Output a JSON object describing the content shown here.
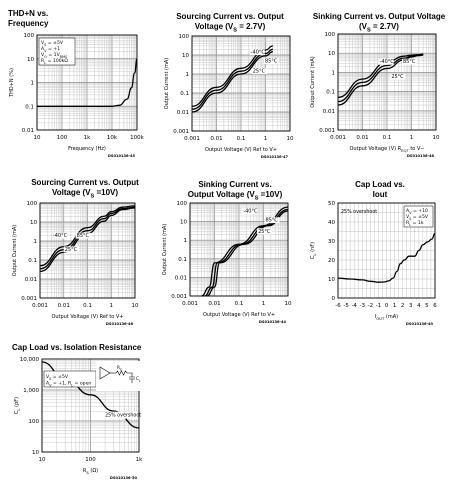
{
  "chart_data": [
    {
      "id": "thd",
      "type": "line",
      "title_lines": [
        "THD+N vs.",
        "Frequency"
      ],
      "xlabel": "Frequency (Hz)",
      "ylabel": "THD+N (%)",
      "xscale": "log",
      "yscale": "log",
      "xlim": [
        10,
        100000
      ],
      "ylim": [
        0.01,
        100
      ],
      "xticks": [
        10,
        100,
        1000,
        10000,
        100000
      ],
      "xticklabels": [
        "10",
        "100",
        "1k",
        "10k",
        "100k"
      ],
      "yticks": [
        0.01,
        0.1,
        1,
        10,
        100
      ],
      "yticklabels": [
        "0.01",
        "0.1",
        "1",
        "10",
        "100"
      ],
      "inset_lines": [
        "V_S = ±5V",
        "A_V = +1",
        "V_O = 1V_RMS",
        "R_L = 100kΩ"
      ],
      "code": "DS010136-45",
      "series": [
        {
          "x": [
            10,
            100,
            1000,
            10000,
            20000,
            40000,
            60000,
            80000,
            100000
          ],
          "y": [
            0.1,
            0.1,
            0.1,
            0.1,
            0.11,
            0.2,
            0.6,
            2.5,
            10
          ]
        }
      ]
    },
    {
      "id": "src27",
      "type": "line",
      "title_lines": [
        "Sourcing Current vs. Output",
        "Voltage (V_S = 2.7V)"
      ],
      "xlabel": "Output Voltage (V) Ref to V+",
      "ylabel": "Output Current (mA)",
      "xscale": "log",
      "yscale": "log",
      "xlim": [
        0.001,
        10
      ],
      "ylim": [
        0.001,
        100
      ],
      "xticks": [
        0.001,
        0.01,
        0.1,
        1,
        10
      ],
      "xticklabels": [
        "0.001",
        "0.01",
        "0.1",
        "1",
        "10"
      ],
      "yticks": [
        0.001,
        0.01,
        0.1,
        1,
        10,
        100
      ],
      "yticklabels": [
        "0.001",
        "0.01",
        "0.1",
        "1",
        "10",
        "100"
      ],
      "code": "DS010136-47",
      "series": [
        {
          "name": "-40°C",
          "x": [
            0.001,
            0.01,
            0.1,
            1,
            2
          ],
          "y": [
            0.02,
            0.2,
            2,
            18,
            30
          ]
        },
        {
          "name": "85°C",
          "x": [
            0.001,
            0.01,
            0.1,
            1,
            2
          ],
          "y": [
            0.014,
            0.14,
            1.4,
            12,
            20
          ]
        },
        {
          "name": "25°C",
          "x": [
            0.001,
            0.01,
            0.1,
            1,
            2
          ],
          "y": [
            0.01,
            0.1,
            1,
            9,
            15
          ]
        }
      ],
      "labels": [
        {
          "text": "-40°C",
          "x": 0.25,
          "y": 12
        },
        {
          "text": "85°C",
          "x": 0.95,
          "y": 4
        },
        {
          "text": "25°C",
          "x": 0.3,
          "y": 1.2
        }
      ]
    },
    {
      "id": "snk27",
      "type": "line",
      "title_lines": [
        "Sinking Current vs. Output Voltage",
        "(V_S = 2.7V)"
      ],
      "xlabel": "Output Voltage (V) R_EQT to V−",
      "ylabel": "Output Current (mA)",
      "xscale": "log",
      "yscale": "log",
      "xlim": [
        0.001,
        10
      ],
      "ylim": [
        0.001,
        100
      ],
      "xticks": [
        0.001,
        0.01,
        0.1,
        1,
        10
      ],
      "xticklabels": [
        "0.001",
        "0.01",
        "0.1",
        "1",
        "10"
      ],
      "yticks": [
        0.001,
        0.01,
        0.1,
        1,
        10,
        100
      ],
      "yticklabels": [
        "0.001",
        "0.01",
        "0.1",
        "1",
        "10",
        "100"
      ],
      "code": "DS010136-48",
      "series": [
        {
          "name": "-40°C",
          "x": [
            0.001,
            0.01,
            0.1,
            0.5,
            1,
            2,
            3
          ],
          "y": [
            0.05,
            0.45,
            3.5,
            7,
            8,
            8.5,
            9
          ]
        },
        {
          "name": "85°C",
          "x": [
            0.001,
            0.01,
            0.1,
            0.5,
            1,
            2,
            3
          ],
          "y": [
            0.03,
            0.3,
            2.3,
            5.5,
            7,
            8,
            8.5
          ]
        },
        {
          "name": "25°C",
          "x": [
            0.001,
            0.01,
            0.1,
            0.5,
            1,
            2,
            3
          ],
          "y": [
            0.02,
            0.2,
            1.6,
            4.5,
            6.5,
            7.5,
            8
          ]
        }
      ],
      "labels": [
        {
          "text": "-40°C",
          "x": 0.05,
          "y": 3
        },
        {
          "text": "85°C",
          "x": 0.45,
          "y": 3
        },
        {
          "text": "25°C",
          "x": 0.15,
          "y": 0.5
        }
      ]
    },
    {
      "id": "src10",
      "type": "line",
      "title_lines": [
        "Sourcing Current vs. Output",
        "Voltage (V_S =10V)"
      ],
      "xlabel": "Output Voltage (V) Ref to V+",
      "ylabel": "Output Current (mA)",
      "xscale": "log",
      "yscale": "log",
      "xlim": [
        0.001,
        10
      ],
      "ylim": [
        0.001,
        100
      ],
      "xticks": [
        0.001,
        0.01,
        0.1,
        1,
        10
      ],
      "xticklabels": [
        "0.001",
        "0.01",
        "0.1",
        "1",
        "10"
      ],
      "yticks": [
        0.001,
        0.01,
        0.1,
        1,
        10,
        100
      ],
      "yticklabels": [
        "0.001",
        "0.01",
        "0.1",
        "1",
        "10",
        "100"
      ],
      "code": "DS010136-46",
      "series": [
        {
          "name": "-40°C",
          "x": [
            0.001,
            0.01,
            0.1,
            0.5,
            1,
            3,
            10
          ],
          "y": [
            0.05,
            0.5,
            5,
            20,
            35,
            60,
            70
          ]
        },
        {
          "name": "85°C",
          "x": [
            0.001,
            0.01,
            0.1,
            0.5,
            1,
            3,
            10
          ],
          "y": [
            0.035,
            0.35,
            3.5,
            15,
            28,
            50,
            60
          ]
        },
        {
          "name": "25°C",
          "x": [
            0.001,
            0.01,
            0.1,
            0.5,
            1,
            3,
            10
          ],
          "y": [
            0.025,
            0.25,
            2.5,
            11,
            22,
            45,
            55
          ]
        }
      ],
      "labels": [
        {
          "text": "-40°C",
          "x": 0.0035,
          "y": 1.6
        },
        {
          "text": "85°C",
          "x": 0.035,
          "y": 1.6
        },
        {
          "text": "25°C",
          "x": 0.011,
          "y": 0.3
        }
      ]
    },
    {
      "id": "snk10",
      "type": "line",
      "title_lines": [
        "Sinking Current vs.",
        "Output Voltage (V_S =10V)"
      ],
      "xlabel": "Output Voltage (V) Ref to V+",
      "ylabel": "Output Current (mA)",
      "xscale": "log",
      "yscale": "log",
      "xlim": [
        0.001,
        10
      ],
      "ylim": [
        0.001,
        100
      ],
      "xticks": [
        0.001,
        0.01,
        0.1,
        1,
        10
      ],
      "xticklabels": [
        "0.001",
        "0.01",
        "0.1",
        "1",
        "10"
      ],
      "yticks": [
        0.001,
        0.01,
        0.1,
        1,
        10,
        100
      ],
      "yticklabels": [
        "0.001",
        "0.01",
        "0.1",
        "1",
        "10",
        "100"
      ],
      "code": "DS010136-44",
      "series": [
        {
          "name": "-40°C",
          "x": [
            0.003,
            0.006,
            0.01,
            0.1,
            1,
            10
          ],
          "y": [
            0.001,
            0.003,
            0.06,
            0.6,
            6,
            60
          ]
        },
        {
          "name": "85°C",
          "x": [
            0.004,
            0.008,
            0.013,
            0.13,
            1.3,
            10
          ],
          "y": [
            0.001,
            0.003,
            0.06,
            0.6,
            6,
            45
          ]
        },
        {
          "name": "25°C",
          "x": [
            0.005,
            0.01,
            0.016,
            0.16,
            1.6,
            10
          ],
          "y": [
            0.001,
            0.003,
            0.06,
            0.6,
            6,
            37
          ]
        }
      ],
      "labels": [
        {
          "text": "-40°C",
          "x": 0.15,
          "y": 30
        },
        {
          "text": "85°C",
          "x": 1.2,
          "y": 10
        },
        {
          "text": "25°C",
          "x": 0.6,
          "y": 2.5
        }
      ]
    },
    {
      "id": "capiout",
      "type": "line",
      "title_lines": [
        "Cap Load vs.",
        "Iout"
      ],
      "xlabel": "I_OUT (mA)",
      "ylabel": "C_L (nF)",
      "xscale": "linear",
      "yscale": "linear",
      "xlim": [
        -6,
        6
      ],
      "ylim": [
        0,
        50
      ],
      "xticks": [
        -6,
        -5,
        -4,
        -3,
        -2,
        -1,
        0,
        1,
        2,
        3,
        4,
        5,
        6
      ],
      "xticklabels": [
        "-6",
        "-5",
        "-4",
        "-3",
        "-2",
        "-1",
        "0",
        "1",
        "2",
        "3",
        "4",
        "5",
        "6"
      ],
      "yticks": [
        0,
        10,
        20,
        30,
        40,
        50
      ],
      "yticklabels": [
        "0",
        "10",
        "20",
        "30",
        "40",
        "50"
      ],
      "inset_title": "25% overshoot",
      "inset_lines": [
        "A_V = +10",
        "V_S = ±5V",
        "R_L = 1k"
      ],
      "code": "DS010136-49",
      "series": [
        {
          "x": [
            -6,
            -4.5,
            -3,
            -2,
            -1,
            -0.3,
            0.3,
            0.8,
            1.3,
            1.7,
            2.2,
            2.8,
            3.5,
            4,
            4.5,
            5.1,
            5.6,
            6
          ],
          "y": [
            10.5,
            10,
            9.5,
            8.8,
            8.3,
            8.4,
            9,
            10.5,
            14,
            18,
            20,
            22,
            22,
            25,
            28,
            29.5,
            31,
            34
          ]
        }
      ]
    },
    {
      "id": "capriso",
      "type": "line",
      "title_lines": [
        "Cap Load vs. Isolation Resistance"
      ],
      "xlabel": "R_S (Ω)",
      "ylabel": "C_L (pF)",
      "xscale": "log",
      "yscale": "log",
      "xlim": [
        10,
        1000
      ],
      "ylim": [
        10,
        10000
      ],
      "xticks": [
        10,
        100,
        1000
      ],
      "xticklabels": [
        "10",
        "100",
        "1k"
      ],
      "yticks": [
        10,
        100,
        1000,
        10000
      ],
      "yticklabels": [
        "10",
        "100",
        "1,000",
        "10,000"
      ],
      "inset_lines": [
        "V_S = ±5V",
        "A_V = +1, R_L = open"
      ],
      "inset_title": "25% overshoot",
      "circuit_labels": [
        "R_S",
        "C_L"
      ],
      "code": "DS010136-50",
      "series": [
        {
          "x": [
            10,
            30,
            100,
            300,
            1000
          ],
          "y": [
            8000,
            2300,
            700,
            210,
            60
          ]
        }
      ]
    }
  ]
}
